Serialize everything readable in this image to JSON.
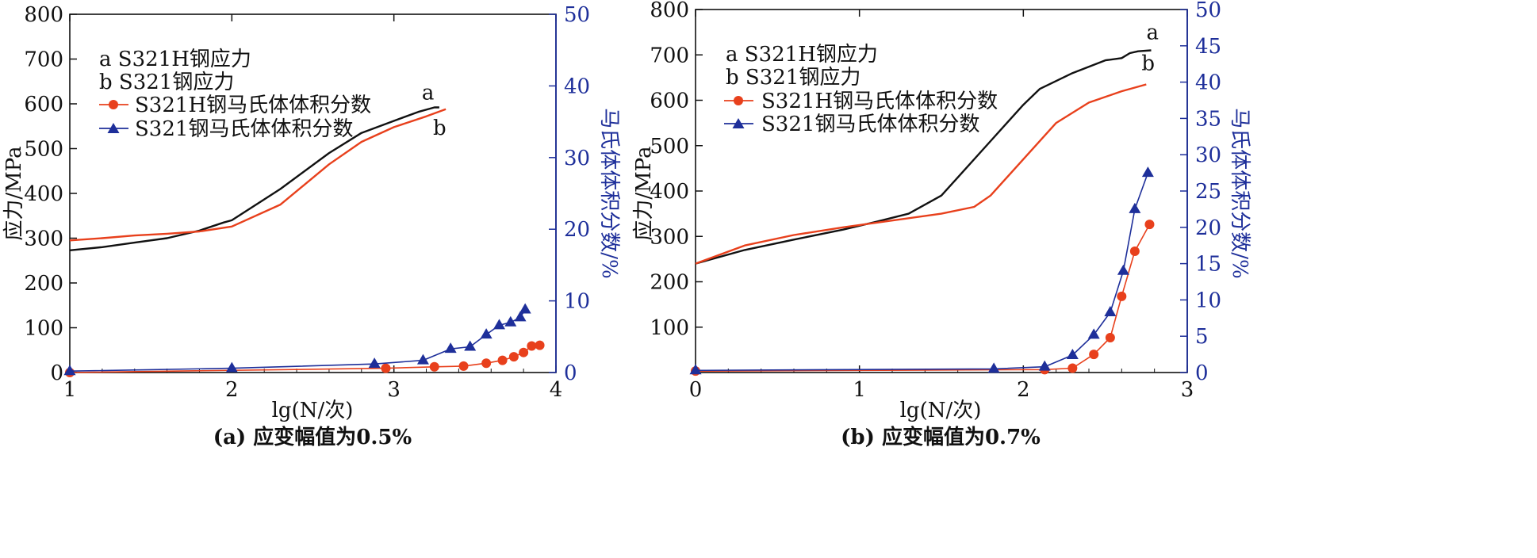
{
  "colors": {
    "black": "#111111",
    "red": "#e8401c",
    "blue": "#1e2f9a"
  },
  "chart_data": [
    {
      "type": "line",
      "caption": "(a) 应变幅值为0.5%",
      "xlabel": "lg(N/次)",
      "ylabel": "应力/MPa",
      "y2label": "马氏体体积分数/%",
      "xlim": [
        1,
        4
      ],
      "ylim": [
        0,
        800
      ],
      "y2lim": [
        0,
        50
      ],
      "xticks": [
        "1",
        "2",
        "3",
        "4"
      ],
      "yticks": [
        "0",
        "100",
        "200",
        "300",
        "400",
        "500",
        "600",
        "700",
        "800"
      ],
      "y2ticks": [
        "0",
        "10",
        "20",
        "30",
        "40",
        "50"
      ],
      "legend": [
        "a    S321H钢应力",
        "b    S321钢应力",
        "S321H钢马氏体体积分数",
        "S321钢马氏体体积分数"
      ],
      "legend_position": "top-left",
      "series": [
        {
          "name": "S321H钢应力",
          "label": "a",
          "axis": "left",
          "marker": "none",
          "color": "black",
          "x": [
            1.0,
            1.2,
            1.4,
            1.6,
            1.8,
            1.95,
            2.0,
            2.3,
            2.6,
            2.8,
            3.0,
            3.15,
            3.25,
            3.28
          ],
          "y": [
            273,
            280,
            290,
            300,
            317,
            335,
            340,
            410,
            490,
            535,
            562,
            582,
            592,
            592
          ]
        },
        {
          "name": "S321钢应力",
          "label": "b",
          "axis": "left",
          "marker": "none",
          "color": "red",
          "x": [
            1.0,
            1.2,
            1.4,
            1.6,
            1.8,
            2.0,
            2.3,
            2.6,
            2.8,
            3.0,
            3.2,
            3.32
          ],
          "y": [
            295,
            300,
            306,
            310,
            315,
            326,
            375,
            465,
            515,
            548,
            572,
            588
          ]
        },
        {
          "name": "S321H钢马氏体体积分数",
          "axis": "right",
          "marker": "circle",
          "color": "red",
          "x": [
            1.0,
            2.95,
            3.25,
            3.43,
            3.57,
            3.67,
            3.74,
            3.8,
            3.85,
            3.9
          ],
          "y": [
            0.0,
            0.6,
            0.8,
            0.9,
            1.3,
            1.7,
            2.2,
            2.8,
            3.7,
            3.8
          ]
        },
        {
          "name": "S321钢马氏体体积分数",
          "axis": "right",
          "marker": "triangle",
          "color": "blue",
          "x": [
            1.0,
            2.0,
            2.88,
            3.18,
            3.35,
            3.47,
            3.57,
            3.65,
            3.72,
            3.78,
            3.81
          ],
          "y": [
            0.2,
            0.6,
            1.2,
            1.7,
            3.3,
            3.6,
            5.3,
            6.6,
            7.0,
            7.7,
            8.8
          ]
        }
      ]
    },
    {
      "type": "line",
      "caption": "(b) 应变幅值为0.7%",
      "xlabel": "lg(N/次)",
      "ylabel": "应力/MPa",
      "y2label": "马氏体体积分数/%",
      "xlim": [
        0,
        3
      ],
      "ylim": [
        0,
        800
      ],
      "y2lim": [
        0,
        50
      ],
      "xticks": [
        "0",
        "1",
        "2",
        "3"
      ],
      "yticks": [
        "100",
        "200",
        "300",
        "400",
        "500",
        "600",
        "700",
        "800"
      ],
      "y2ticks": [
        "0",
        "5",
        "10",
        "15",
        "20",
        "25",
        "30",
        "35",
        "40",
        "45",
        "50"
      ],
      "legend": [
        "a    S321H钢应力",
        "b    S321钢应力",
        "S321H钢马氏体体积分数",
        "S321钢马氏体体积分数"
      ],
      "legend_position": "top-left",
      "series": [
        {
          "name": "S321H钢应力",
          "label": "a",
          "axis": "left",
          "marker": "none",
          "color": "black",
          "x": [
            0.0,
            0.3,
            0.6,
            0.9,
            1.1,
            1.3,
            1.5,
            1.6,
            1.8,
            2.0,
            2.1,
            2.3,
            2.5,
            2.6,
            2.65,
            2.7,
            2.78
          ],
          "y": [
            240,
            270,
            293,
            315,
            332,
            350,
            390,
            430,
            510,
            590,
            625,
            660,
            688,
            693,
            704,
            708,
            710
          ]
        },
        {
          "name": "S321钢应力",
          "label": "b",
          "axis": "left",
          "marker": "none",
          "color": "red",
          "x": [
            0.0,
            0.3,
            0.6,
            0.9,
            1.2,
            1.5,
            1.7,
            1.8,
            2.0,
            2.2,
            2.4,
            2.6,
            2.75
          ],
          "y": [
            240,
            280,
            303,
            320,
            335,
            350,
            365,
            390,
            470,
            550,
            595,
            620,
            635
          ]
        },
        {
          "name": "S321H钢马氏体体积分数",
          "axis": "right",
          "marker": "circle",
          "color": "red",
          "x": [
            0.0,
            2.13,
            2.3,
            2.43,
            2.53,
            2.6,
            2.68,
            2.77
          ],
          "y": [
            0.2,
            0.4,
            0.6,
            2.5,
            4.8,
            10.5,
            16.7,
            20.4
          ]
        },
        {
          "name": "S321钢马氏体体积分数",
          "axis": "right",
          "marker": "triangle",
          "color": "blue",
          "x": [
            0.0,
            1.82,
            2.13,
            2.3,
            2.43,
            2.53,
            2.61,
            2.68,
            2.76
          ],
          "y": [
            0.3,
            0.5,
            0.8,
            2.4,
            5.2,
            8.3,
            14.0,
            22.5,
            27.5
          ]
        }
      ]
    }
  ]
}
